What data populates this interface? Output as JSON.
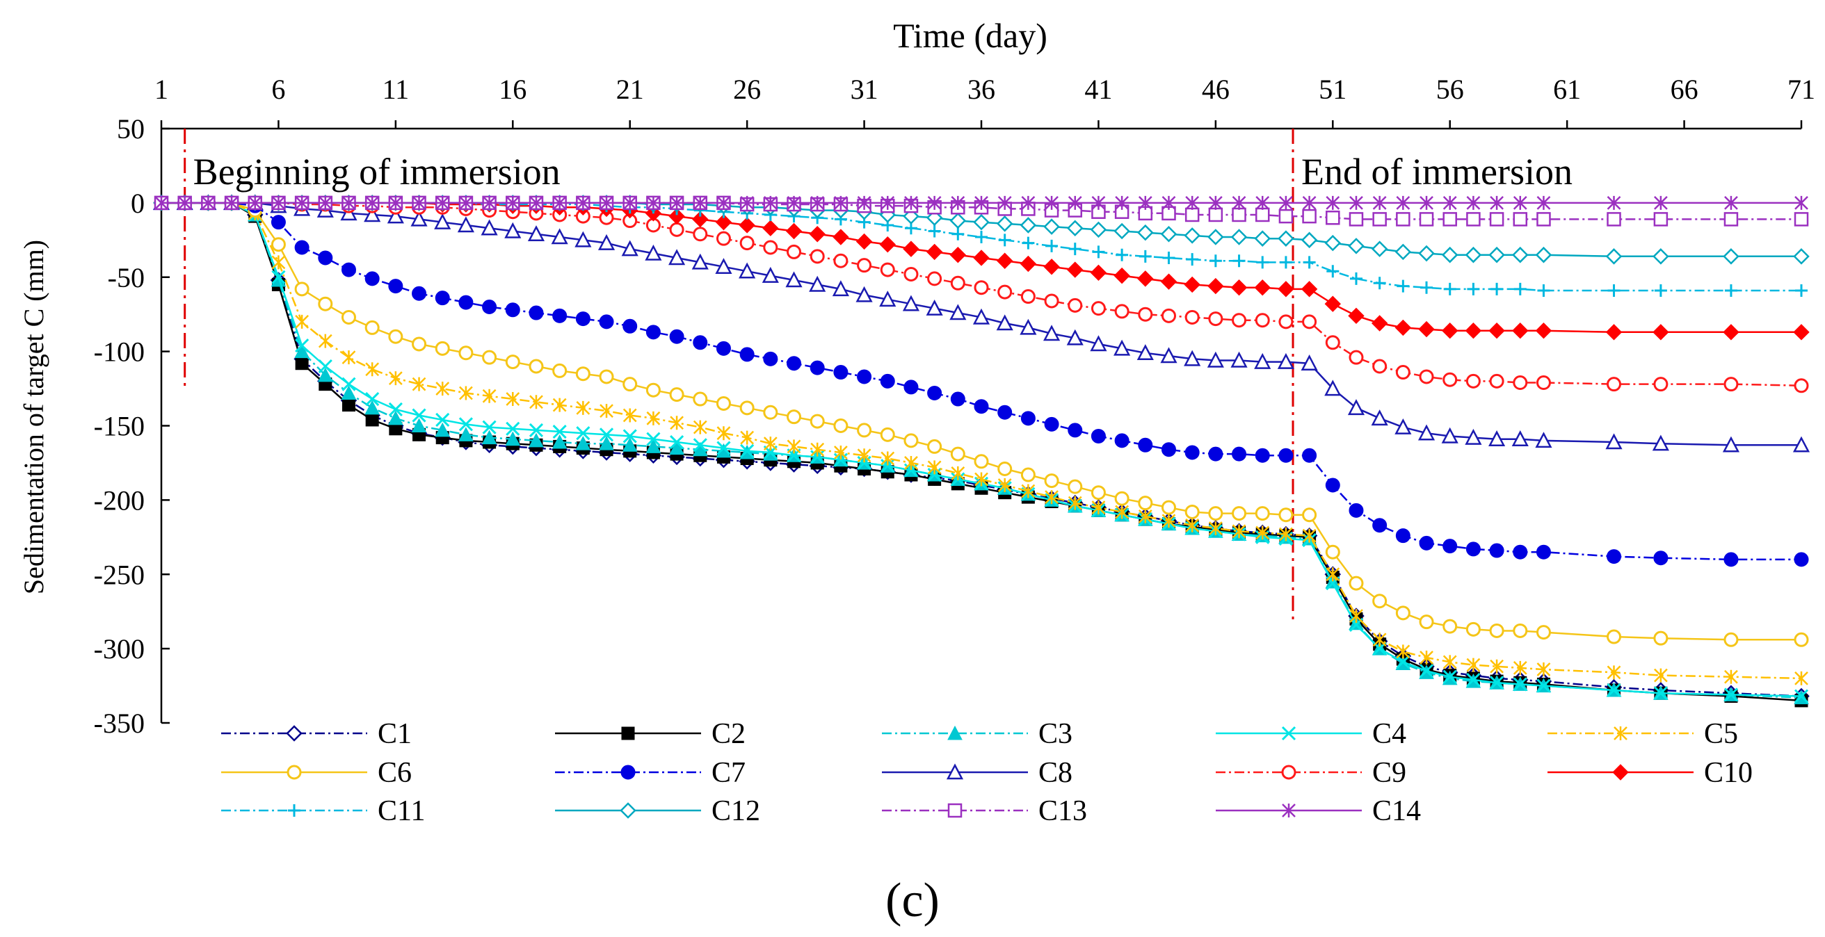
{
  "chart_data": {
    "type": "line",
    "title": "Time (day)",
    "xlabel": "Time (day)",
    "ylabel": "Sedimentation of target C (mm)",
    "xlim": [
      1,
      71
    ],
    "ylim": [
      -350,
      50
    ],
    "xticks": [
      1,
      6,
      11,
      16,
      21,
      26,
      31,
      36,
      41,
      46,
      51,
      56,
      61,
      66,
      71
    ],
    "yticks": [
      50,
      0,
      -50,
      -100,
      -150,
      -200,
      -250,
      -300,
      -350
    ],
    "panel_label": "(c)",
    "annotations": [
      {
        "text": "Beginning of immersion",
        "x": 2.5
      },
      {
        "text": "End of immersion",
        "x": 49.5
      }
    ],
    "x": [
      1,
      2,
      3,
      4,
      5,
      6,
      7,
      8,
      9,
      10,
      11,
      12,
      13,
      14,
      15,
      16,
      17,
      18,
      19,
      20,
      21,
      22,
      23,
      24,
      25,
      26,
      27,
      28,
      29,
      30,
      31,
      32,
      33,
      34,
      35,
      36,
      37,
      38,
      39,
      40,
      41,
      42,
      43,
      44,
      45,
      46,
      47,
      48,
      49,
      50,
      51,
      52,
      53,
      54,
      55,
      56,
      57,
      58,
      59,
      60,
      63,
      65,
      68,
      71
    ],
    "series": [
      {
        "name": "C1",
        "color": "#00008b",
        "dash": "dashdot",
        "marker": "diamond-open",
        "values": [
          0,
          0,
          0,
          0,
          -8,
          -52,
          -105,
          -120,
          -133,
          -143,
          -150,
          -155,
          -158,
          -161,
          -163,
          -164,
          -165,
          -166,
          -167,
          -168,
          -169,
          -170,
          -171,
          -172,
          -173,
          -174,
          -175,
          -176,
          -177,
          -178,
          -179,
          -181,
          -183,
          -185,
          -187,
          -190,
          -193,
          -196,
          -199,
          -202,
          -205,
          -208,
          -211,
          -214,
          -217,
          -219,
          -221,
          -222,
          -223,
          -224,
          -250,
          -278,
          -295,
          -305,
          -312,
          -316,
          -318,
          -320,
          -321,
          -322,
          -326,
          -328,
          -330,
          -332
        ]
      },
      {
        "name": "C2",
        "color": "#000000",
        "dash": "solid",
        "marker": "square",
        "values": [
          0,
          0,
          0,
          0,
          -9,
          -55,
          -108,
          -122,
          -136,
          -146,
          -152,
          -156,
          -158,
          -160,
          -161,
          -162,
          -163,
          -164,
          -165,
          -166,
          -167,
          -168,
          -169,
          -170,
          -171,
          -172,
          -173,
          -174,
          -175,
          -177,
          -179,
          -181,
          -183,
          -186,
          -189,
          -192,
          -195,
          -198,
          -201,
          -204,
          -207,
          -210,
          -213,
          -216,
          -218,
          -220,
          -222,
          -223,
          -224,
          -225,
          -252,
          -280,
          -297,
          -307,
          -314,
          -318,
          -320,
          -322,
          -323,
          -324,
          -328,
          -330,
          -332,
          -335
        ]
      },
      {
        "name": "C3",
        "color": "#00c8d2",
        "dash": "dashdot",
        "marker": "triangle",
        "values": [
          0,
          0,
          0,
          0,
          -8,
          -52,
          -100,
          -116,
          -128,
          -138,
          -145,
          -150,
          -153,
          -156,
          -158,
          -159,
          -160,
          -161,
          -162,
          -162,
          -163,
          -164,
          -165,
          -166,
          -167,
          -168,
          -169,
          -170,
          -171,
          -173,
          -175,
          -177,
          -180,
          -183,
          -186,
          -189,
          -192,
          -196,
          -200,
          -204,
          -207,
          -210,
          -213,
          -216,
          -219,
          -221,
          -223,
          -224,
          -225,
          -226,
          -255,
          -283,
          -300,
          -310,
          -316,
          -320,
          -322,
          -323,
          -324,
          -325,
          -328,
          -330,
          -331,
          -333
        ]
      },
      {
        "name": "C4",
        "color": "#00e5e5",
        "dash": "solid",
        "marker": "x",
        "values": [
          0,
          0,
          0,
          0,
          -8,
          -50,
          -96,
          -110,
          -122,
          -132,
          -139,
          -143,
          -146,
          -149,
          -151,
          -152,
          -153,
          -154,
          -155,
          -156,
          -157,
          -159,
          -161,
          -163,
          -165,
          -167,
          -168,
          -170,
          -171,
          -173,
          -175,
          -177,
          -180,
          -183,
          -186,
          -189,
          -192,
          -196,
          -200,
          -204,
          -207,
          -210,
          -213,
          -216,
          -219,
          -221,
          -223,
          -225,
          -226,
          -227,
          -256,
          -284,
          -300,
          -309,
          -315,
          -319,
          -321,
          -323,
          -324,
          -325,
          -328,
          -330,
          -331,
          -332
        ]
      },
      {
        "name": "C5",
        "color": "#ffc000",
        "dash": "dashdot",
        "marker": "asterisk",
        "values": [
          0,
          0,
          0,
          0,
          -7,
          -40,
          -80,
          -93,
          -104,
          -112,
          -118,
          -122,
          -125,
          -128,
          -130,
          -132,
          -134,
          -136,
          -138,
          -140,
          -143,
          -145,
          -148,
          -151,
          -155,
          -158,
          -162,
          -164,
          -166,
          -168,
          -170,
          -172,
          -175,
          -178,
          -182,
          -186,
          -190,
          -194,
          -198,
          -202,
          -205,
          -208,
          -211,
          -214,
          -217,
          -219,
          -221,
          -222,
          -223,
          -224,
          -250,
          -278,
          -294,
          -302,
          -306,
          -309,
          -311,
          -312,
          -313,
          -314,
          -316,
          -318,
          -319,
          -320
        ]
      },
      {
        "name": "C6",
        "color": "#f5c518",
        "dash": "solid",
        "marker": "circle-open",
        "values": [
          0,
          0,
          0,
          0,
          -5,
          -28,
          -58,
          -68,
          -77,
          -84,
          -90,
          -95,
          -98,
          -101,
          -104,
          -107,
          -110,
          -113,
          -115,
          -117,
          -122,
          -126,
          -129,
          -132,
          -135,
          -138,
          -141,
          -144,
          -147,
          -150,
          -153,
          -156,
          -160,
          -164,
          -169,
          -174,
          -179,
          -183,
          -187,
          -191,
          -195,
          -199,
          -202,
          -205,
          -208,
          -209,
          -209,
          -209,
          -210,
          -210,
          -235,
          -256,
          -268,
          -276,
          -282,
          -285,
          -287,
          -288,
          -288,
          -289,
          -292,
          -293,
          -294,
          -294
        ]
      },
      {
        "name": "C7",
        "color": "#0000e0",
        "dash": "dashdot",
        "marker": "circle",
        "values": [
          0,
          0,
          0,
          0,
          -2,
          -13,
          -30,
          -37,
          -45,
          -51,
          -56,
          -61,
          -64,
          -67,
          -70,
          -72,
          -74,
          -76,
          -78,
          -80,
          -83,
          -87,
          -90,
          -94,
          -98,
          -102,
          -105,
          -108,
          -111,
          -114,
          -117,
          -120,
          -124,
          -128,
          -132,
          -137,
          -141,
          -145,
          -149,
          -153,
          -157,
          -160,
          -163,
          -166,
          -168,
          -169,
          -169,
          -170,
          -170,
          -170,
          -190,
          -207,
          -217,
          -224,
          -229,
          -231,
          -233,
          -234,
          -235,
          -235,
          -238,
          -239,
          -240,
          -240
        ]
      },
      {
        "name": "C8",
        "color": "#1a1ab0",
        "dash": "solid",
        "marker": "triangle-open",
        "values": [
          0,
          0,
          0,
          0,
          0,
          -2,
          -4,
          -5,
          -7,
          -8,
          -9,
          -11,
          -13,
          -15,
          -17,
          -19,
          -21,
          -23,
          -25,
          -27,
          -31,
          -34,
          -37,
          -40,
          -43,
          -46,
          -49,
          -52,
          -55,
          -58,
          -62,
          -65,
          -68,
          -71,
          -74,
          -77,
          -81,
          -84,
          -88,
          -91,
          -95,
          -98,
          -101,
          -103,
          -105,
          -106,
          -106,
          -107,
          -107,
          -108,
          -125,
          -138,
          -145,
          -151,
          -155,
          -157,
          -158,
          -159,
          -159,
          -160,
          -161,
          -162,
          -163,
          -163
        ]
      },
      {
        "name": "C9",
        "color": "#ff1a1a",
        "dash": "dashdot",
        "marker": "circle-open",
        "values": [
          0,
          0,
          0,
          0,
          0,
          0,
          -1,
          -1,
          -2,
          -2,
          -3,
          -3,
          -3,
          -4,
          -5,
          -6,
          -7,
          -8,
          -9,
          -10,
          -12,
          -15,
          -18,
          -21,
          -24,
          -27,
          -30,
          -33,
          -36,
          -39,
          -42,
          -45,
          -48,
          -51,
          -54,
          -57,
          -60,
          -63,
          -66,
          -69,
          -71,
          -73,
          -75,
          -76,
          -77,
          -78,
          -79,
          -79,
          -80,
          -80,
          -94,
          -104,
          -110,
          -114,
          -117,
          -119,
          -120,
          -120,
          -121,
          -121,
          -122,
          -122,
          -122,
          -123
        ]
      },
      {
        "name": "C10",
        "color": "#ff0000",
        "dash": "solid",
        "marker": "diamond",
        "values": [
          0,
          0,
          0,
          0,
          0,
          0,
          0,
          0,
          0,
          0,
          0,
          0,
          -1,
          -1,
          -1,
          -2,
          -2,
          -3,
          -3,
          -4,
          -5,
          -7,
          -9,
          -11,
          -13,
          -15,
          -17,
          -19,
          -21,
          -23,
          -26,
          -28,
          -31,
          -33,
          -35,
          -37,
          -39,
          -41,
          -43,
          -45,
          -47,
          -49,
          -51,
          -53,
          -55,
          -56,
          -57,
          -57,
          -58,
          -58,
          -68,
          -76,
          -81,
          -84,
          -85,
          -86,
          -86,
          -86,
          -86,
          -86,
          -87,
          -87,
          -87,
          -87
        ]
      },
      {
        "name": "C11",
        "color": "#00b8e0",
        "dash": "dashdot",
        "marker": "plus",
        "values": [
          0,
          0,
          0,
          0,
          0,
          0,
          0,
          0,
          0,
          0,
          0,
          0,
          0,
          0,
          -1,
          -1,
          -1,
          -1,
          -1,
          -2,
          -3,
          -3,
          -4,
          -5,
          -6,
          -7,
          -8,
          -9,
          -10,
          -11,
          -13,
          -15,
          -17,
          -19,
          -21,
          -23,
          -25,
          -27,
          -29,
          -31,
          -33,
          -35,
          -36,
          -37,
          -38,
          -39,
          -39,
          -40,
          -40,
          -40,
          -46,
          -51,
          -54,
          -56,
          -57,
          -58,
          -58,
          -58,
          -58,
          -59,
          -59,
          -59,
          -59,
          -59
        ]
      },
      {
        "name": "C12",
        "color": "#00a8c0",
        "dash": "solid",
        "marker": "diamond-open",
        "values": [
          0,
          0,
          0,
          0,
          0,
          0,
          0,
          0,
          0,
          0,
          0,
          0,
          0,
          0,
          0,
          0,
          0,
          0,
          0,
          0,
          0,
          -1,
          -1,
          -1,
          -2,
          -3,
          -3,
          -4,
          -5,
          -5,
          -6,
          -8,
          -9,
          -10,
          -12,
          -13,
          -14,
          -15,
          -16,
          -17,
          -18,
          -19,
          -20,
          -21,
          -22,
          -23,
          -23,
          -24,
          -24,
          -25,
          -27,
          -29,
          -31,
          -33,
          -34,
          -35,
          -35,
          -35,
          -35,
          -35,
          -36,
          -36,
          -36,
          -36
        ]
      },
      {
        "name": "C13",
        "color": "#9b30c0",
        "dash": "dashdot",
        "marker": "square-open",
        "values": [
          0,
          0,
          0,
          0,
          0,
          0,
          0,
          0,
          0,
          0,
          0,
          0,
          0,
          0,
          0,
          0,
          0,
          0,
          0,
          0,
          0,
          0,
          0,
          0,
          0,
          -1,
          -1,
          -1,
          -1,
          -1,
          -2,
          -2,
          -2,
          -3,
          -3,
          -3,
          -4,
          -4,
          -5,
          -5,
          -6,
          -6,
          -7,
          -7,
          -8,
          -8,
          -8,
          -8,
          -9,
          -9,
          -10,
          -11,
          -11,
          -11,
          -11,
          -11,
          -11,
          -11,
          -11,
          -11,
          -11,
          -11,
          -11,
          -11
        ]
      },
      {
        "name": "C14",
        "color": "#9b30c0",
        "dash": "solid",
        "marker": "asterisk",
        "values": [
          0,
          0,
          0,
          0,
          0,
          0,
          0,
          0,
          0,
          0,
          0,
          0,
          0,
          0,
          0,
          0,
          0,
          0,
          0,
          0,
          0,
          0,
          0,
          0,
          0,
          0,
          0,
          0,
          0,
          0,
          0,
          0,
          0,
          0,
          0,
          0,
          0,
          0,
          0,
          0,
          0,
          0,
          0,
          0,
          0,
          0,
          0,
          0,
          0,
          0,
          0,
          0,
          0,
          0,
          0,
          0,
          0,
          0,
          0,
          0,
          0,
          0,
          0,
          0
        ]
      }
    ]
  }
}
